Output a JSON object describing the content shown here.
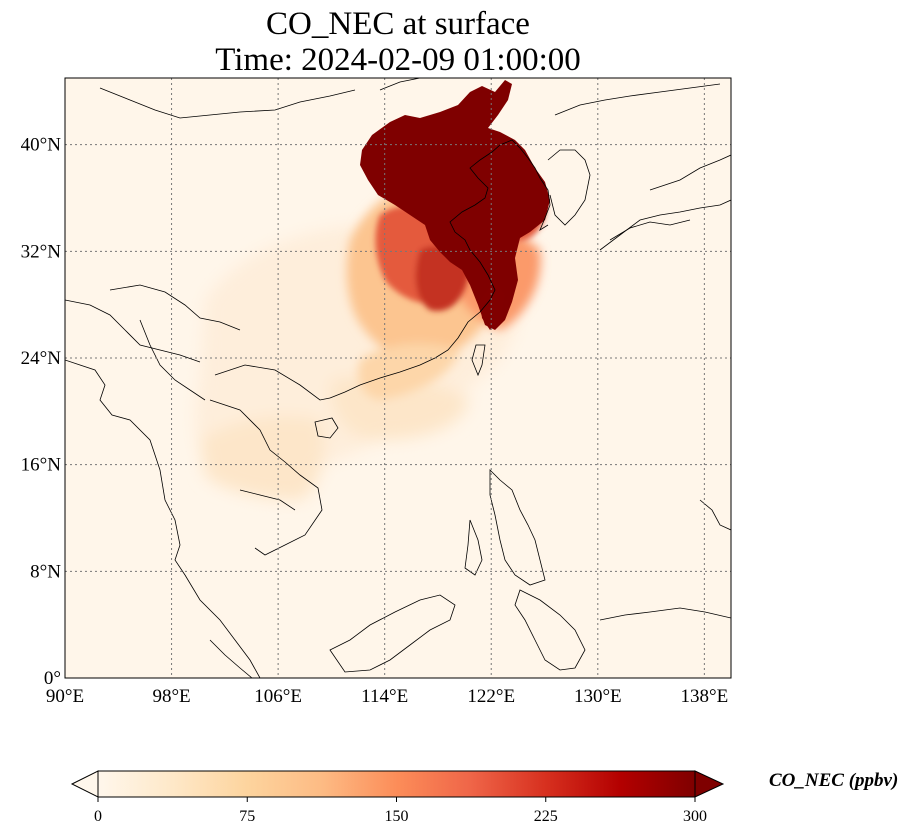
{
  "title": {
    "line1": "CO_NEC at surface",
    "line2": "Time: 2024-02-09 01:00:00"
  },
  "map": {
    "lon_range": [
      90,
      140
    ],
    "lat_range": [
      0,
      45
    ],
    "lon_ticks": [
      "90°E",
      "98°E",
      "106°E",
      "114°E",
      "122°E",
      "130°E",
      "138°E"
    ],
    "lat_ticks": [
      "0°",
      "8°N",
      "16°N",
      "24°N",
      "32°N",
      "40°N"
    ],
    "gridlines": true,
    "gridline_style": "dotted",
    "colormap": "OrRd"
  },
  "colorbar": {
    "label": "CO_NEC (ppbv)",
    "ticks": [
      "0",
      "75",
      "150",
      "225",
      "300"
    ],
    "range": [
      0,
      300
    ],
    "extend": "both",
    "colors": [
      "#fff7ec",
      "#fee8c8",
      "#fdd49e",
      "#fdbb84",
      "#fc8d59",
      "#ef6548",
      "#d7301f",
      "#b30000",
      "#7f0000"
    ]
  }
}
